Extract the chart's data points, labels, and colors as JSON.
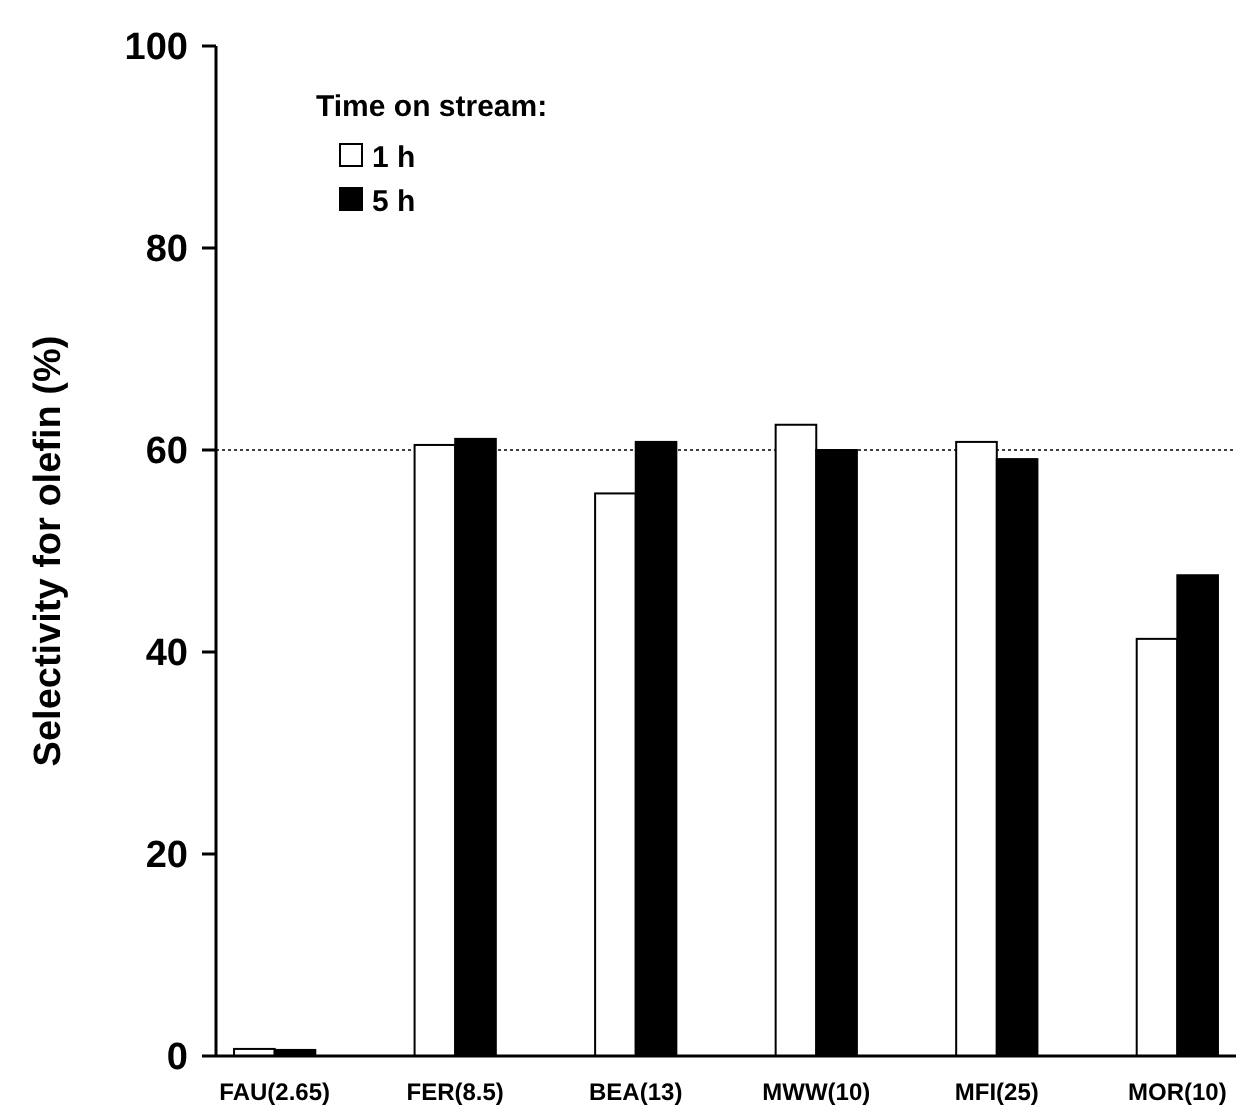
{
  "chart_data": {
    "type": "bar",
    "ylabel": "Selectivity for olefin (%)",
    "legend_title": "Time on stream:",
    "legend": "top left",
    "categories": [
      "FAU(2.65)",
      "FER(8.5)",
      "BEA(13)",
      "MWW(10)",
      "MFI(25)",
      "MOR(10)"
    ],
    "series": [
      {
        "name": "1 h",
        "color": "#ffffff",
        "values": [
          0.7,
          60.5,
          55.7,
          62.5,
          60.8,
          41.3
        ]
      },
      {
        "name": "5 h",
        "color": "#000000",
        "values": [
          0.6,
          61.1,
          60.8,
          60.0,
          59.1,
          47.6
        ]
      }
    ],
    "ylim": [
      0,
      100
    ],
    "yticks": [
      0,
      20,
      40,
      60,
      80,
      100
    ],
    "ref_lines": [
      {
        "axis": "y",
        "value": 60,
        "color": "#000000",
        "line_style": "dotted"
      }
    ]
  }
}
